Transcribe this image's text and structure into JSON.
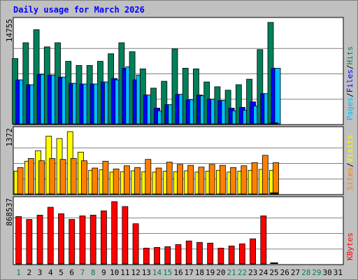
{
  "title": "Daily usage for March 2026",
  "colors": {
    "background": "#c0c0c0",
    "plot_bg": "#ffffff",
    "title_text": "#0000ff",
    "axis_text": "#000000",
    "hits": "#00805c",
    "files": "#0000ff",
    "pages": "#00c0ff",
    "visits": "#ffff00",
    "sites": "#ff8000",
    "kbytes": "#ff0000",
    "weekday": "#000000",
    "weekend": "#00805c",
    "today_marker": "#000000"
  },
  "chart_data": [
    {
      "type": "bar",
      "panel": "top",
      "ymax_label": "14755",
      "ylim": [
        0,
        14755
      ],
      "legend_vertical": [
        {
          "text": "Hits",
          "color": "#00805c"
        },
        {
          "text": "/",
          "color": "#000000"
        },
        {
          "text": "Files",
          "color": "#0000ff"
        },
        {
          "text": "/",
          "color": "#000000"
        },
        {
          "text": "Pages",
          "color": "#00c0ff"
        }
      ],
      "categories": [
        "1",
        "2",
        "3",
        "4",
        "5",
        "6",
        "7",
        "8",
        "9",
        "10",
        "11",
        "12",
        "13",
        "14",
        "15",
        "16",
        "17",
        "18",
        "19",
        "20",
        "21",
        "22",
        "23",
        "24",
        "25",
        "26",
        "27",
        "28",
        "29",
        "30",
        "31"
      ],
      "series": [
        {
          "name": "Hits",
          "values": [
            9500,
            11800,
            13700,
            11200,
            11800,
            9100,
            8500,
            8500,
            9100,
            10200,
            11800,
            10500,
            8000,
            5200,
            6200,
            10900,
            8100,
            8000,
            6100,
            5400,
            4900,
            5700,
            6500,
            10800,
            14755,
            0,
            0,
            0,
            0,
            0,
            0
          ]
        },
        {
          "name": "Files",
          "values": [
            6400,
            5700,
            7200,
            7100,
            6800,
            5900,
            5800,
            5800,
            6100,
            6600,
            8100,
            6400,
            4200,
            2300,
            2800,
            4300,
            3500,
            4200,
            3600,
            3400,
            2300,
            2400,
            3200,
            4400,
            8100,
            0,
            0,
            0,
            0,
            0,
            0
          ]
        },
        {
          "name": "Pages",
          "values": [
            6400,
            5700,
            7200,
            7100,
            6800,
            5900,
            5800,
            5800,
            6100,
            6400,
            8300,
            7100,
            4200,
            1900,
            2800,
            4300,
            3500,
            4100,
            3600,
            3400,
            1900,
            2000,
            2600,
            4400,
            8100,
            0,
            0,
            0,
            0,
            0,
            0
          ]
        }
      ],
      "today_index": 25
    },
    {
      "type": "bar",
      "panel": "middle",
      "ymax_label": "1372",
      "ylim": [
        0,
        1372
      ],
      "legend_vertical": [
        {
          "text": "Visits",
          "color": "#ffff00"
        },
        {
          "text": "/",
          "color": "#000000"
        },
        {
          "text": "Sites",
          "color": "#ff8000"
        }
      ],
      "categories": [
        "1",
        "2",
        "3",
        "4",
        "5",
        "6",
        "7",
        "8",
        "9",
        "10",
        "11",
        "12",
        "13",
        "14",
        "15",
        "16",
        "17",
        "18",
        "19",
        "20",
        "21",
        "22",
        "23",
        "24",
        "25",
        "26",
        "27",
        "28",
        "29",
        "30",
        "31"
      ],
      "series": [
        {
          "name": "Visits",
          "values": [
            500,
            720,
            950,
            1270,
            1220,
            1372,
            920,
            520,
            530,
            480,
            490,
            510,
            490,
            480,
            500,
            490,
            510,
            480,
            500,
            520,
            480,
            500,
            520,
            540,
            520,
            0,
            0,
            0,
            0,
            0,
            0
          ]
        },
        {
          "name": "Sites",
          "values": [
            580,
            780,
            730,
            780,
            760,
            780,
            730,
            570,
            720,
            550,
            620,
            580,
            760,
            570,
            700,
            650,
            630,
            590,
            650,
            630,
            580,
            620,
            690,
            850,
            690,
            0,
            0,
            0,
            0,
            0,
            0
          ]
        }
      ],
      "today_index": 25
    },
    {
      "type": "bar",
      "panel": "bottom",
      "ymax_label": "868537",
      "ylim": [
        0,
        868537
      ],
      "legend_vertical": [
        {
          "text": "KBytes",
          "color": "#ff0000"
        }
      ],
      "categories": [
        "1",
        "2",
        "3",
        "4",
        "5",
        "6",
        "7",
        "8",
        "9",
        "10",
        "11",
        "12",
        "13",
        "14",
        "15",
        "16",
        "17",
        "18",
        "19",
        "20",
        "21",
        "22",
        "23",
        "24",
        "25",
        "26",
        "27",
        "28",
        "29",
        "30",
        "31"
      ],
      "series": [
        {
          "name": "KBytes",
          "values": [
            660000,
            620000,
            680000,
            790000,
            700000,
            620000,
            670000,
            680000,
            740000,
            868537,
            800000,
            560000,
            220000,
            230000,
            240000,
            270000,
            320000,
            300000,
            290000,
            220000,
            250000,
            280000,
            350000,
            670000,
            0,
            0,
            0,
            0,
            0,
            0,
            0
          ]
        }
      ],
      "today_index": 25
    }
  ],
  "days": [
    {
      "label": "1",
      "weekend": true
    },
    {
      "label": "2",
      "weekend": false
    },
    {
      "label": "3",
      "weekend": false
    },
    {
      "label": "4",
      "weekend": false
    },
    {
      "label": "5",
      "weekend": false
    },
    {
      "label": "6",
      "weekend": false
    },
    {
      "label": "7",
      "weekend": true
    },
    {
      "label": "8",
      "weekend": true
    },
    {
      "label": "9",
      "weekend": false
    },
    {
      "label": "10",
      "weekend": false
    },
    {
      "label": "11",
      "weekend": false
    },
    {
      "label": "12",
      "weekend": false
    },
    {
      "label": "13",
      "weekend": false
    },
    {
      "label": "14",
      "weekend": true
    },
    {
      "label": "15",
      "weekend": true
    },
    {
      "label": "16",
      "weekend": false
    },
    {
      "label": "17",
      "weekend": false
    },
    {
      "label": "18",
      "weekend": false
    },
    {
      "label": "19",
      "weekend": false
    },
    {
      "label": "20",
      "weekend": false
    },
    {
      "label": "21",
      "weekend": true
    },
    {
      "label": "22",
      "weekend": true
    },
    {
      "label": "23",
      "weekend": false
    },
    {
      "label": "24",
      "weekend": false
    },
    {
      "label": "25",
      "weekend": false
    },
    {
      "label": "26",
      "weekend": false
    },
    {
      "label": "27",
      "weekend": false
    },
    {
      "label": "28",
      "weekend": true
    },
    {
      "label": "29",
      "weekend": true
    },
    {
      "label": "30",
      "weekend": false
    },
    {
      "label": "31",
      "weekend": false
    }
  ]
}
